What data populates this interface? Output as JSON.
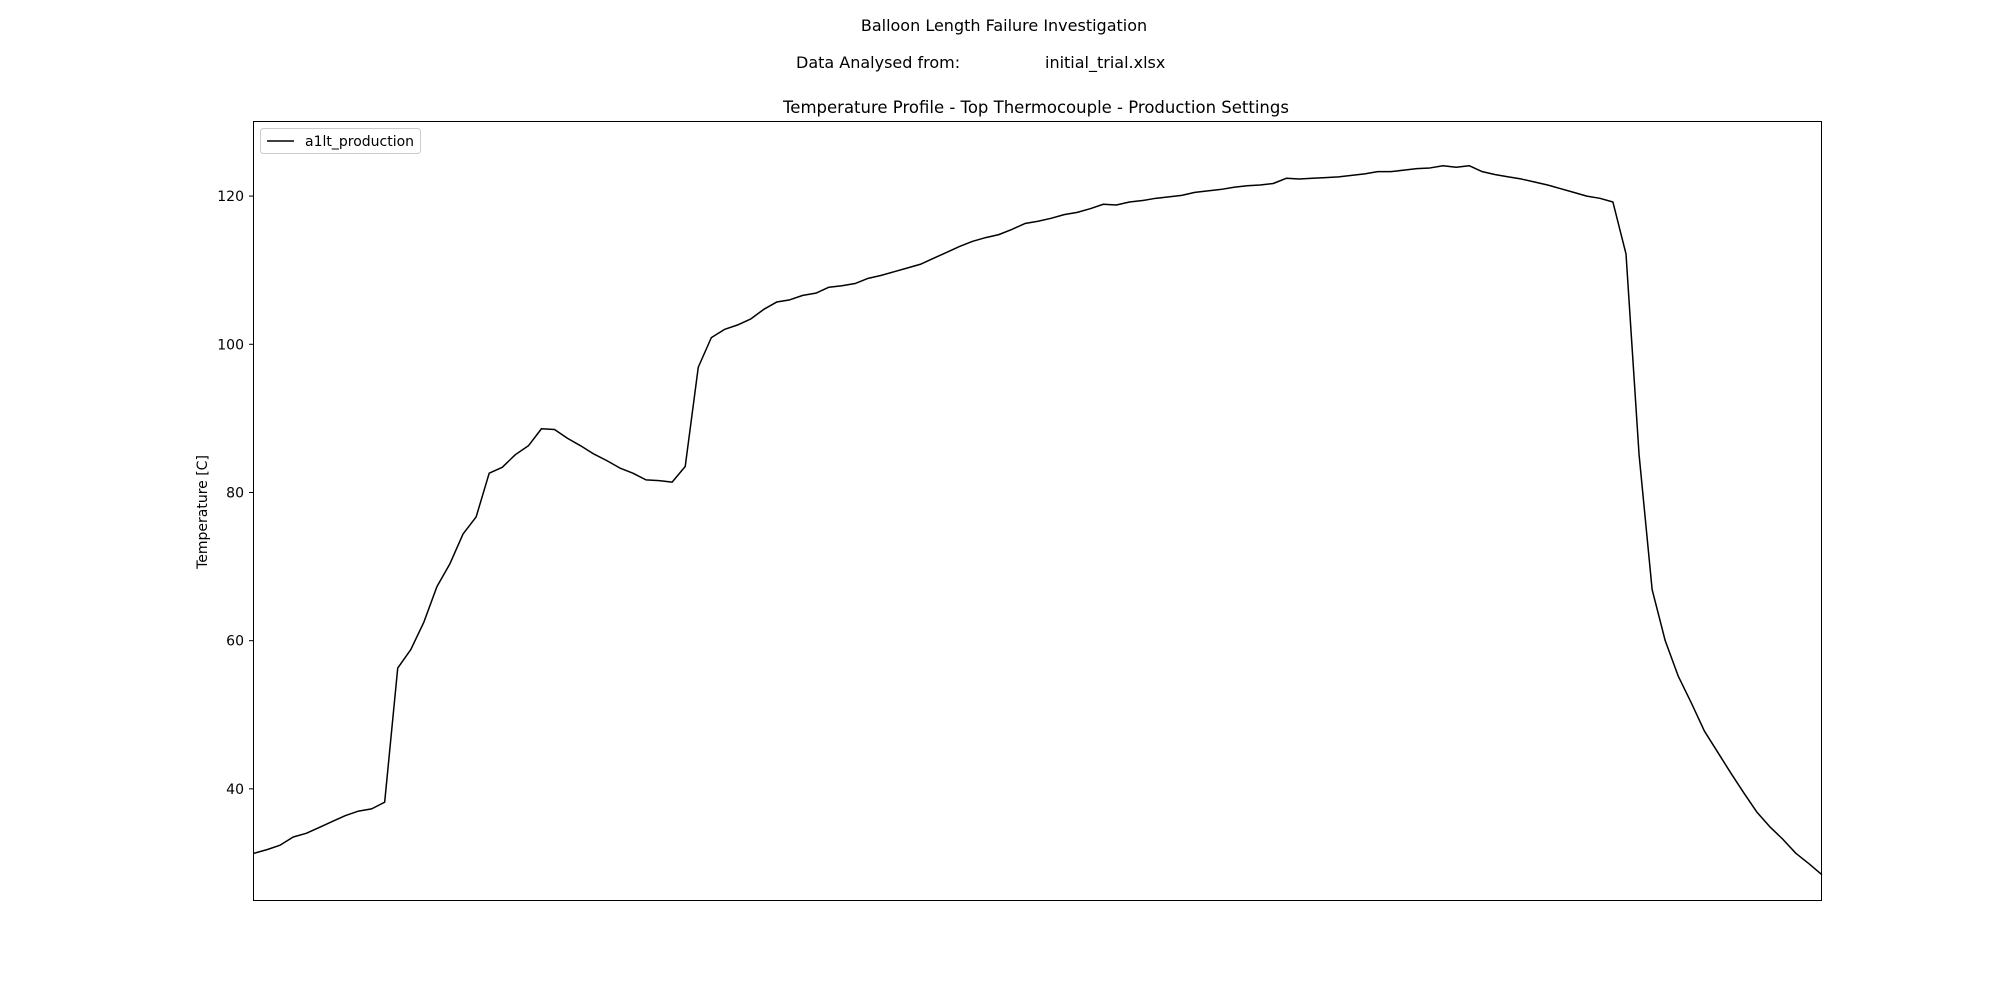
{
  "header": {
    "suptitle": "Balloon Length Failure Investigation",
    "analysed_label": "Data Analysed from:",
    "analysed_file": "initial_trial.xlsx"
  },
  "chart_data": {
    "type": "line",
    "title": "Temperature Profile - Top Thermocouple - Production Settings",
    "xlabel": "",
    "ylabel": "Temperature [C]",
    "ylim": [
      25,
      130
    ],
    "xlim": [
      0,
      120
    ],
    "grid": false,
    "legend_position": "upper left",
    "x_ticks_shown": false,
    "yticks": [
      40,
      60,
      80,
      100,
      120
    ],
    "line_color": "#000000",
    "series": [
      {
        "name": "a1lt_production",
        "x": [
          0,
          1,
          2,
          3,
          4,
          5,
          6,
          7,
          8,
          9,
          10,
          11,
          12,
          13,
          14,
          15,
          16,
          17,
          18,
          19,
          20,
          21,
          22,
          23,
          24,
          25,
          26,
          27,
          28,
          29,
          30,
          31,
          32,
          33,
          34,
          35,
          36,
          37,
          38,
          39,
          40,
          41,
          42,
          43,
          44,
          45,
          46,
          47,
          48,
          49,
          50,
          51,
          52,
          53,
          54,
          55,
          56,
          57,
          58,
          59,
          60,
          61,
          62,
          63,
          64,
          65,
          66,
          67,
          68,
          69,
          70,
          71,
          72,
          73,
          74,
          75,
          76,
          77,
          78,
          79,
          80,
          81,
          82,
          83,
          84,
          85,
          86,
          87,
          88,
          89,
          90,
          91,
          92,
          93,
          94,
          95,
          96,
          97,
          98,
          99,
          100,
          101,
          102,
          103,
          104,
          105,
          106,
          107,
          108,
          109,
          110,
          111,
          112,
          113,
          114,
          115,
          116,
          117,
          118,
          119,
          120
        ],
        "y": [
          31.3,
          31.8,
          32.4,
          33.5,
          34.0,
          34.8,
          35.6,
          36.4,
          37.0,
          37.3,
          38.2,
          56.3,
          58.8,
          62.5,
          67.3,
          70.4,
          74.4,
          76.7,
          82.6,
          83.4,
          85.1,
          86.3,
          88.6,
          88.5,
          87.3,
          86.3,
          85.2,
          84.3,
          83.3,
          82.6,
          81.7,
          81.6,
          81.4,
          83.5,
          96.9,
          100.9,
          102.0,
          102.6,
          103.4,
          104.7,
          105.7,
          106.0,
          106.6,
          106.9,
          107.7,
          107.9,
          108.2,
          108.9,
          109.3,
          109.8,
          110.3,
          110.8,
          111.6,
          112.4,
          113.2,
          113.9,
          114.4,
          114.8,
          115.5,
          116.3,
          116.6,
          117.0,
          117.5,
          117.8,
          118.3,
          118.9,
          118.8,
          119.2,
          119.4,
          119.7,
          119.9,
          120.1,
          120.5,
          120.7,
          120.9,
          121.2,
          121.4,
          121.5,
          121.7,
          122.4,
          122.3,
          122.4,
          122.5,
          122.6,
          122.8,
          123.0,
          123.3,
          123.3,
          123.5,
          123.7,
          123.8,
          124.1,
          123.9,
          124.1,
          123.3,
          122.9,
          122.6,
          122.3,
          121.9,
          121.5,
          121.0,
          120.5,
          120.0,
          119.7,
          119.2,
          112.2,
          85.1,
          66.9,
          60.0,
          55.2,
          51.6,
          47.8,
          45.0,
          42.2,
          39.5,
          36.9,
          34.9,
          33.2,
          31.3,
          29.9,
          28.4
        ]
      }
    ]
  }
}
